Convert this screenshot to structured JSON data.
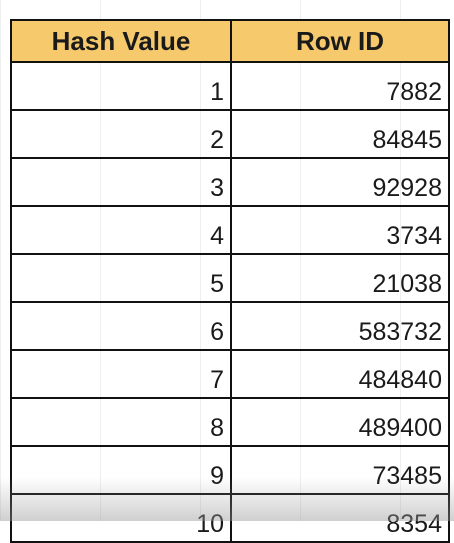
{
  "table": {
    "headers": [
      "Hash Value",
      "Row ID"
    ],
    "rows": [
      [
        "1",
        "7882"
      ],
      [
        "2",
        "84845"
      ],
      [
        "3",
        "92928"
      ],
      [
        "4",
        "3734"
      ],
      [
        "5",
        "21038"
      ],
      [
        "6",
        "583732"
      ],
      [
        "7",
        "484840"
      ],
      [
        "8",
        "489400"
      ],
      [
        "9",
        "73485"
      ],
      [
        "10",
        "8354"
      ]
    ]
  },
  "colors": {
    "header_fill": "#f6c96d",
    "border": "#111111",
    "text": "#1a1a1a"
  }
}
